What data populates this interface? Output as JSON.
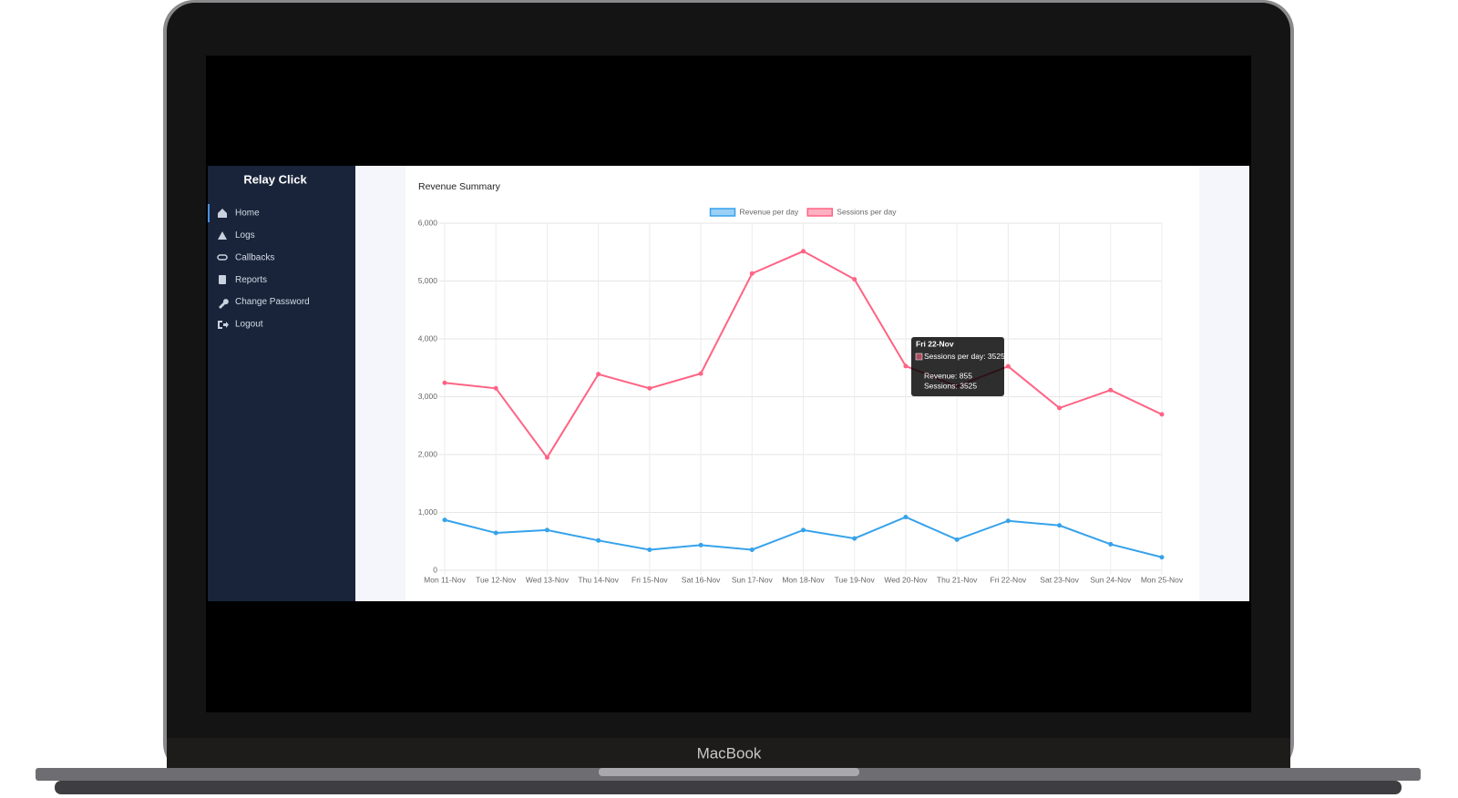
{
  "device": {
    "label": "MacBook"
  },
  "sidebar": {
    "brand": "Relay Click",
    "items": [
      "Home",
      "Logs",
      "Callbacks",
      "Reports",
      "Change Password",
      "Logout"
    ]
  },
  "chart_data": {
    "type": "line",
    "title": "Revenue Summary",
    "categories": [
      "Mon 11-Nov",
      "Tue 12-Nov",
      "Wed 13-Nov",
      "Thu 14-Nov",
      "Fri 15-Nov",
      "Sat 16-Nov",
      "Sun 17-Nov",
      "Mon 18-Nov",
      "Tue 19-Nov",
      "Wed 20-Nov",
      "Thu 21-Nov",
      "Fri 22-Nov",
      "Sat 23-Nov",
      "Sun 24-Nov",
      "Mon 25-Nov"
    ],
    "series": [
      {
        "name": "Revenue per day",
        "color": "#36a2eb",
        "values": [
          870,
          645,
          695,
          515,
          355,
          435,
          355,
          695,
          550,
          920,
          530,
          855,
          775,
          450,
          225
        ]
      },
      {
        "name": "Sessions per day",
        "color": "#ff6384",
        "values": [
          3240,
          3145,
          1950,
          3390,
          3145,
          3400,
          5130,
          5515,
          5030,
          3530,
          3180,
          3525,
          2805,
          3115,
          2695
        ]
      }
    ],
    "ylim": [
      0,
      6000
    ],
    "yticks": [
      0,
      {
        "value": 1000,
        "label": "1,000"
      },
      {
        "value": 2000,
        "label": "2,000"
      },
      {
        "value": 3000,
        "label": "3,000"
      },
      {
        "value": 4000,
        "label": "4,000"
      },
      {
        "value": 5000,
        "label": "5,000"
      },
      {
        "value": 6000,
        "label": "6,000"
      }
    ],
    "grid": true,
    "legend": "top",
    "tooltip": {
      "title": "Fri 22-Nov",
      "lines": [
        "Sessions per day: 3525",
        "Revenue: 855",
        "Sessions: 3525"
      ]
    }
  }
}
